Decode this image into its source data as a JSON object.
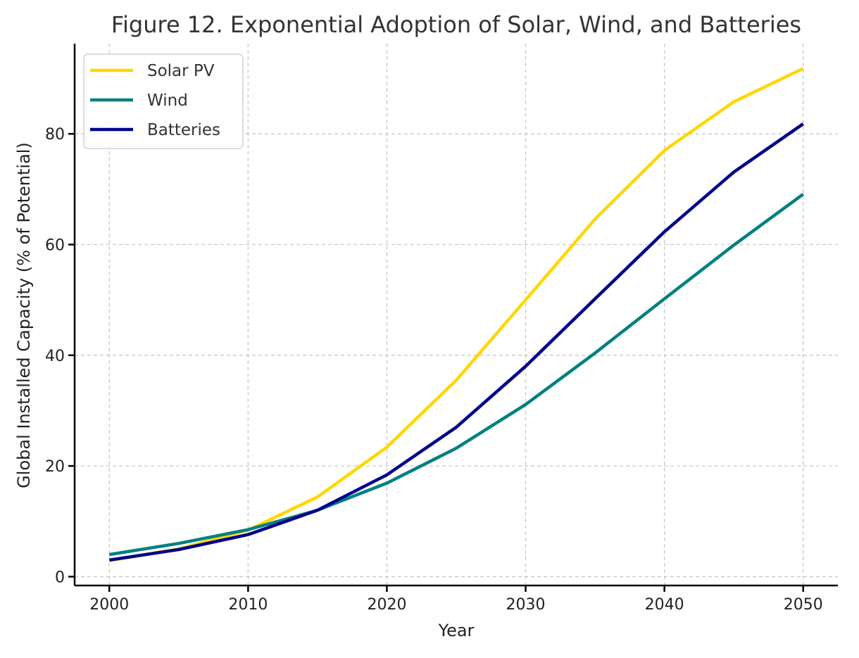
{
  "chart_data": {
    "type": "line",
    "title": "Figure 12. Exponential Adoption of Solar, Wind, and Batteries",
    "xlabel": "Year",
    "ylabel": "Global Installed Capacity (% of Potential)",
    "x": [
      2000,
      2005,
      2010,
      2015,
      2020,
      2025,
      2030,
      2035,
      2040,
      2045,
      2050
    ],
    "xlim": [
      1997.5,
      2052.5
    ],
    "ylim": [
      -1.6,
      96.3
    ],
    "xticks": [
      2000,
      2010,
      2020,
      2030,
      2040,
      2050
    ],
    "yticks": [
      0,
      20,
      40,
      60,
      80
    ],
    "grid": true,
    "legend_position": "top-left",
    "series": [
      {
        "name": "Solar PV",
        "color": "#FFD700",
        "values": [
          2.9,
          5.0,
          8.4,
          14.4,
          23.4,
          35.5,
          50.0,
          64.6,
          77.0,
          85.8,
          91.8
        ]
      },
      {
        "name": "Wind",
        "color": "#008080",
        "values": [
          4.0,
          6.0,
          8.5,
          12.0,
          16.9,
          23.2,
          31.1,
          40.4,
          50.2,
          59.9,
          69.1
        ]
      },
      {
        "name": "Batteries",
        "color": "#00008B",
        "values": [
          3.0,
          4.9,
          7.6,
          12.0,
          18.4,
          27.0,
          38.0,
          50.2,
          62.3,
          73.1,
          81.8
        ]
      }
    ]
  }
}
